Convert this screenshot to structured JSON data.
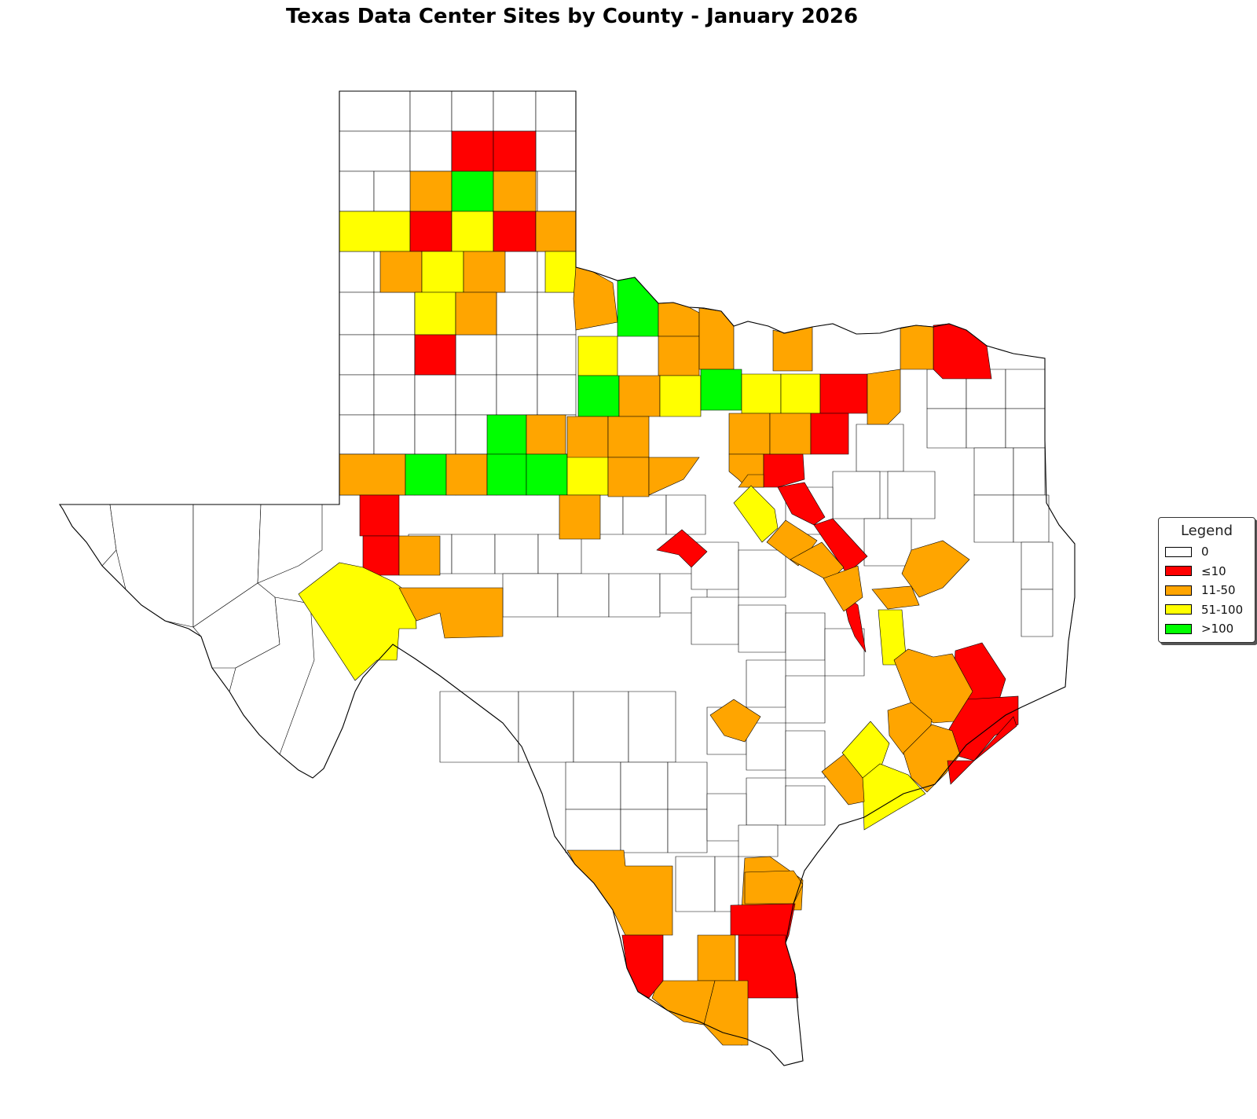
{
  "title": "Texas Data Center Sites by County - January 2026",
  "legend": {
    "title": "Legend",
    "items": [
      {
        "label": "0",
        "color": "#ffffff",
        "class": "none"
      },
      {
        "label": "≤10",
        "color": "#ff0000",
        "class": "low"
      },
      {
        "label": "11-50",
        "color": "#ffa500",
        "class": "mid"
      },
      {
        "label": "51-100",
        "color": "#ffff00",
        "class": "high"
      },
      {
        "label": ">100",
        "color": "#00ff00",
        "class": "max"
      }
    ]
  },
  "counties": [
    {
      "name": "panhandle-r2c3",
      "class": "low"
    },
    {
      "name": "panhandle-r2c4",
      "class": "low"
    },
    {
      "name": "panhandle-r3c2",
      "class": "mid"
    },
    {
      "name": "panhandle-r3c3",
      "class": "max"
    },
    {
      "name": "panhandle-r3c4",
      "class": "mid"
    },
    {
      "name": "panhandle-r4c1",
      "class": "high"
    },
    {
      "name": "panhandle-r4c2",
      "class": "low"
    },
    {
      "name": "panhandle-r4c3",
      "class": "high"
    },
    {
      "name": "panhandle-r4c4",
      "class": "low"
    },
    {
      "name": "panhandle-r4c5",
      "class": "mid"
    },
    {
      "name": "panhandle-r5c2",
      "class": "mid"
    },
    {
      "name": "panhandle-r5c3",
      "class": "high"
    },
    {
      "name": "panhandle-r5c4",
      "class": "mid"
    },
    {
      "name": "panhandle-r5c6",
      "class": "high"
    },
    {
      "name": "south-plains-r6c3",
      "class": "high"
    },
    {
      "name": "south-plains-r6c4",
      "class": "mid"
    },
    {
      "name": "south-plains-r7c3",
      "class": "low"
    },
    {
      "name": "south-plains-r9c4",
      "class": "max"
    },
    {
      "name": "south-plains-r9c5",
      "class": "mid"
    },
    {
      "name": "permian-r10c1",
      "class": "mid"
    },
    {
      "name": "permian-r10c2",
      "class": "max"
    },
    {
      "name": "permian-r10c3",
      "class": "mid"
    },
    {
      "name": "permian-r10c4",
      "class": "max"
    },
    {
      "name": "permian-r10c5",
      "class": "max"
    },
    {
      "name": "permian-r10c6",
      "class": "high"
    },
    {
      "name": "permian-r11c1",
      "class": "low"
    },
    {
      "name": "permian-r12c1",
      "class": "low"
    },
    {
      "name": "permian-r12c2",
      "class": "mid"
    },
    {
      "name": "pecos-area",
      "class": "high"
    },
    {
      "name": "crockett-area",
      "class": "mid"
    },
    {
      "name": "north-r1c1",
      "class": "mid"
    },
    {
      "name": "north-r1c2",
      "class": "max"
    },
    {
      "name": "north-r1c3",
      "class": "mid"
    },
    {
      "name": "north-r1c4",
      "class": "mid"
    },
    {
      "name": "north-r1c6",
      "class": "mid"
    },
    {
      "name": "north-r1c9",
      "class": "mid"
    },
    {
      "name": "north-r1c10",
      "class": "low"
    },
    {
      "name": "north-r2c1",
      "class": "high"
    },
    {
      "name": "north-r2c3",
      "class": "mid"
    },
    {
      "name": "north-r3c1",
      "class": "max"
    },
    {
      "name": "north-r3c2",
      "class": "mid"
    },
    {
      "name": "north-r3c3",
      "class": "high"
    },
    {
      "name": "north-r3c4",
      "class": "max"
    },
    {
      "name": "north-r3c5",
      "class": "high"
    },
    {
      "name": "north-r3c6",
      "class": "high"
    },
    {
      "name": "north-r3c7",
      "class": "low"
    },
    {
      "name": "north-r3c8",
      "class": "mid"
    },
    {
      "name": "north-r4c1",
      "class": "mid"
    },
    {
      "name": "north-r4c2",
      "class": "mid"
    },
    {
      "name": "north-r4c3",
      "class": "mid"
    },
    {
      "name": "north-r4c6",
      "class": "mid"
    },
    {
      "name": "north-r4c7",
      "class": "mid"
    },
    {
      "name": "north-r4c8",
      "class": "low"
    },
    {
      "name": "north-r5c1",
      "class": "mid"
    },
    {
      "name": "north-r5c2",
      "class": "mid"
    },
    {
      "name": "north-r5c3",
      "class": "mid"
    },
    {
      "name": "north-r5c6",
      "class": "mid"
    },
    {
      "name": "north-r5c7",
      "class": "low"
    },
    {
      "name": "north-r6c1",
      "class": "mid"
    },
    {
      "name": "tom-green-area",
      "class": "low"
    },
    {
      "name": "central-a",
      "class": "high"
    },
    {
      "name": "central-b",
      "class": "low"
    },
    {
      "name": "central-c",
      "class": "low"
    },
    {
      "name": "central-d",
      "class": "mid"
    },
    {
      "name": "central-e",
      "class": "low"
    },
    {
      "name": "central-f",
      "class": "mid"
    },
    {
      "name": "central-g",
      "class": "mid"
    },
    {
      "name": "central-h",
      "class": "low"
    },
    {
      "name": "central-i",
      "class": "mid"
    },
    {
      "name": "central-j",
      "class": "high"
    },
    {
      "name": "central-k",
      "class": "mid"
    },
    {
      "name": "hill-country",
      "class": "mid"
    },
    {
      "name": "east-a",
      "class": "low"
    },
    {
      "name": "east-b",
      "class": "low"
    },
    {
      "name": "east-c",
      "class": "mid"
    },
    {
      "name": "houston-a",
      "class": "mid"
    },
    {
      "name": "houston-b",
      "class": "mid"
    },
    {
      "name": "houston-c",
      "class": "high"
    },
    {
      "name": "houston-d",
      "class": "high"
    },
    {
      "name": "houston-e",
      "class": "mid"
    },
    {
      "name": "houston-f",
      "class": "mid"
    },
    {
      "name": "coast-a",
      "class": "low"
    },
    {
      "name": "south-a",
      "class": "mid"
    },
    {
      "name": "south-b",
      "class": "mid"
    },
    {
      "name": "south-c",
      "class": "mid"
    },
    {
      "name": "south-d",
      "class": "low"
    },
    {
      "name": "south-e",
      "class": "low"
    },
    {
      "name": "south-f",
      "class": "mid"
    },
    {
      "name": "south-g",
      "class": "mid"
    },
    {
      "name": "south-h",
      "class": "low"
    },
    {
      "name": "south-i",
      "class": "mid"
    },
    {
      "name": "south-j",
      "class": "mid"
    }
  ]
}
